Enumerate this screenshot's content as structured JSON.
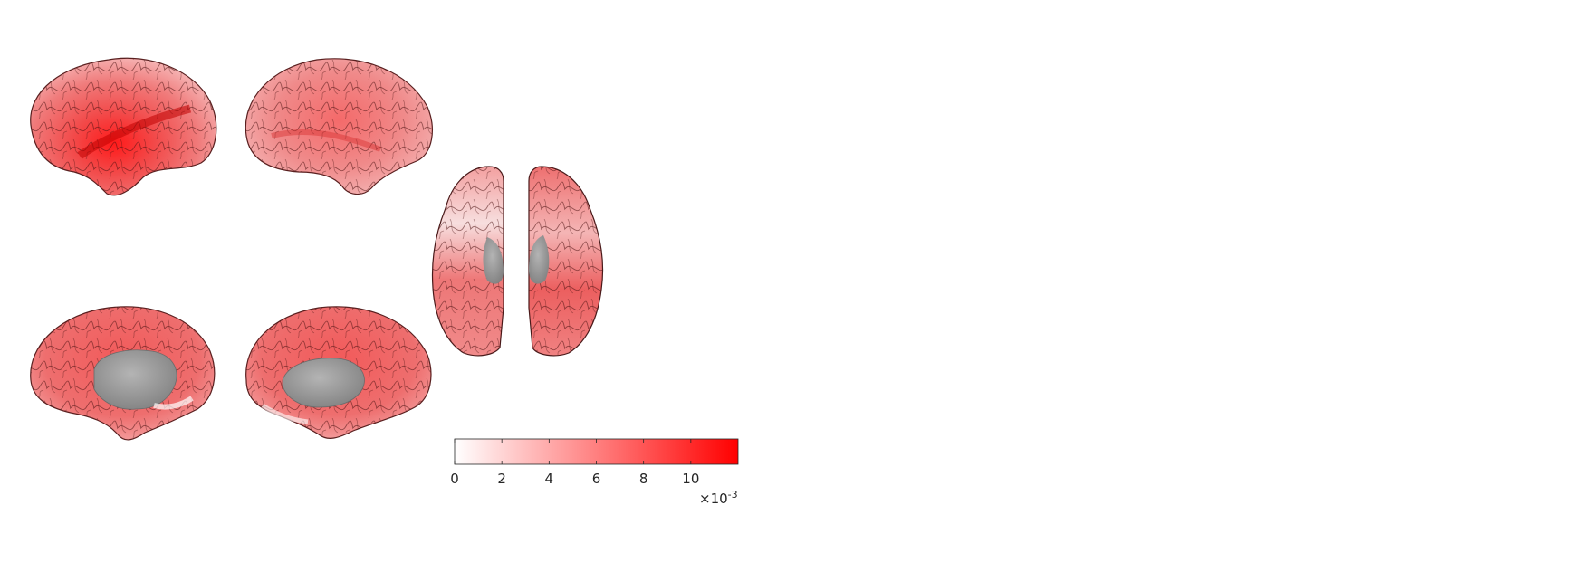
{
  "figure": {
    "views": [
      {
        "name": "left-lateral"
      },
      {
        "name": "right-lateral"
      },
      {
        "name": "left-medial"
      },
      {
        "name": "right-medial"
      },
      {
        "name": "left-dorsal"
      },
      {
        "name": "right-dorsal"
      }
    ],
    "colormap": {
      "low": "#ffffff",
      "high": "#ff0000",
      "subcortical": "#9a9a9a"
    }
  },
  "colorbar": {
    "min": 0,
    "max": 0.012,
    "ticks": [
      "0",
      "2",
      "4",
      "6",
      "8",
      "10"
    ],
    "tick_values": [
      0,
      2,
      4,
      6,
      8,
      10
    ],
    "tick_max": 12,
    "exponent": {
      "prefix": "×10",
      "power": "-3"
    }
  }
}
